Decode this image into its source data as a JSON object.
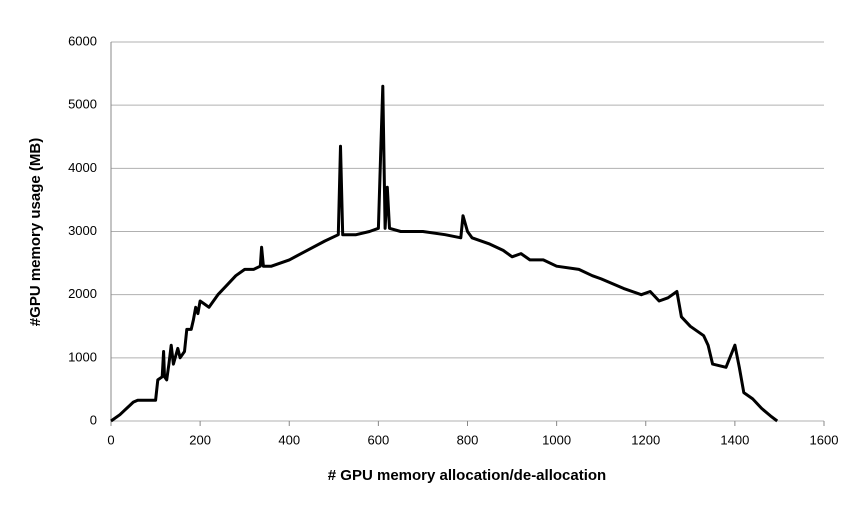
{
  "chart_data": {
    "type": "line",
    "xlabel": "# GPU memory allocation/de-allocation",
    "ylabel": "#GPU memory usage (MB)",
    "color": "#000000",
    "grid": true,
    "xlim": [
      0,
      1600
    ],
    "xticks": [
      0,
      200,
      400,
      600,
      800,
      1000,
      1200,
      1400,
      1600
    ],
    "ylim": [
      0,
      6000
    ],
    "yticks": [
      0,
      1000,
      2000,
      3000,
      4000,
      5000,
      6000
    ],
    "x": [
      0,
      20,
      50,
      60,
      90,
      100,
      105,
      115,
      118,
      120,
      125,
      130,
      135,
      140,
      150,
      155,
      165,
      170,
      180,
      185,
      190,
      195,
      200,
      210,
      220,
      240,
      260,
      280,
      300,
      320,
      335,
      338,
      342,
      360,
      400,
      440,
      480,
      510,
      515,
      520,
      550,
      580,
      600,
      605,
      610,
      615,
      620,
      625,
      650,
      700,
      750,
      785,
      790,
      800,
      810,
      850,
      880,
      900,
      920,
      940,
      970,
      1000,
      1050,
      1080,
      1100,
      1150,
      1190,
      1210,
      1230,
      1250,
      1270,
      1280,
      1300,
      1330,
      1340,
      1350,
      1380,
      1400,
      1410,
      1420,
      1440,
      1460,
      1480,
      1495
    ],
    "values": [
      0,
      100,
      300,
      330,
      330,
      330,
      650,
      700,
      1100,
      700,
      650,
      900,
      1200,
      900,
      1150,
      1000,
      1100,
      1450,
      1450,
      1600,
      1800,
      1700,
      1900,
      1850,
      1800,
      2000,
      2150,
      2300,
      2400,
      2400,
      2450,
      2750,
      2450,
      2450,
      2550,
      2700,
      2850,
      2950,
      4350,
      2950,
      2950,
      3000,
      3050,
      4200,
      5300,
      3050,
      3700,
      3050,
      3000,
      3000,
      2950,
      2900,
      3250,
      3000,
      2900,
      2800,
      2700,
      2600,
      2650,
      2550,
      2550,
      2450,
      2400,
      2300,
      2250,
      2100,
      2000,
      2050,
      1900,
      1950,
      2050,
      1650,
      1500,
      1350,
      1200,
      900,
      850,
      1200,
      850,
      450,
      350,
      200,
      80,
      0
    ]
  }
}
